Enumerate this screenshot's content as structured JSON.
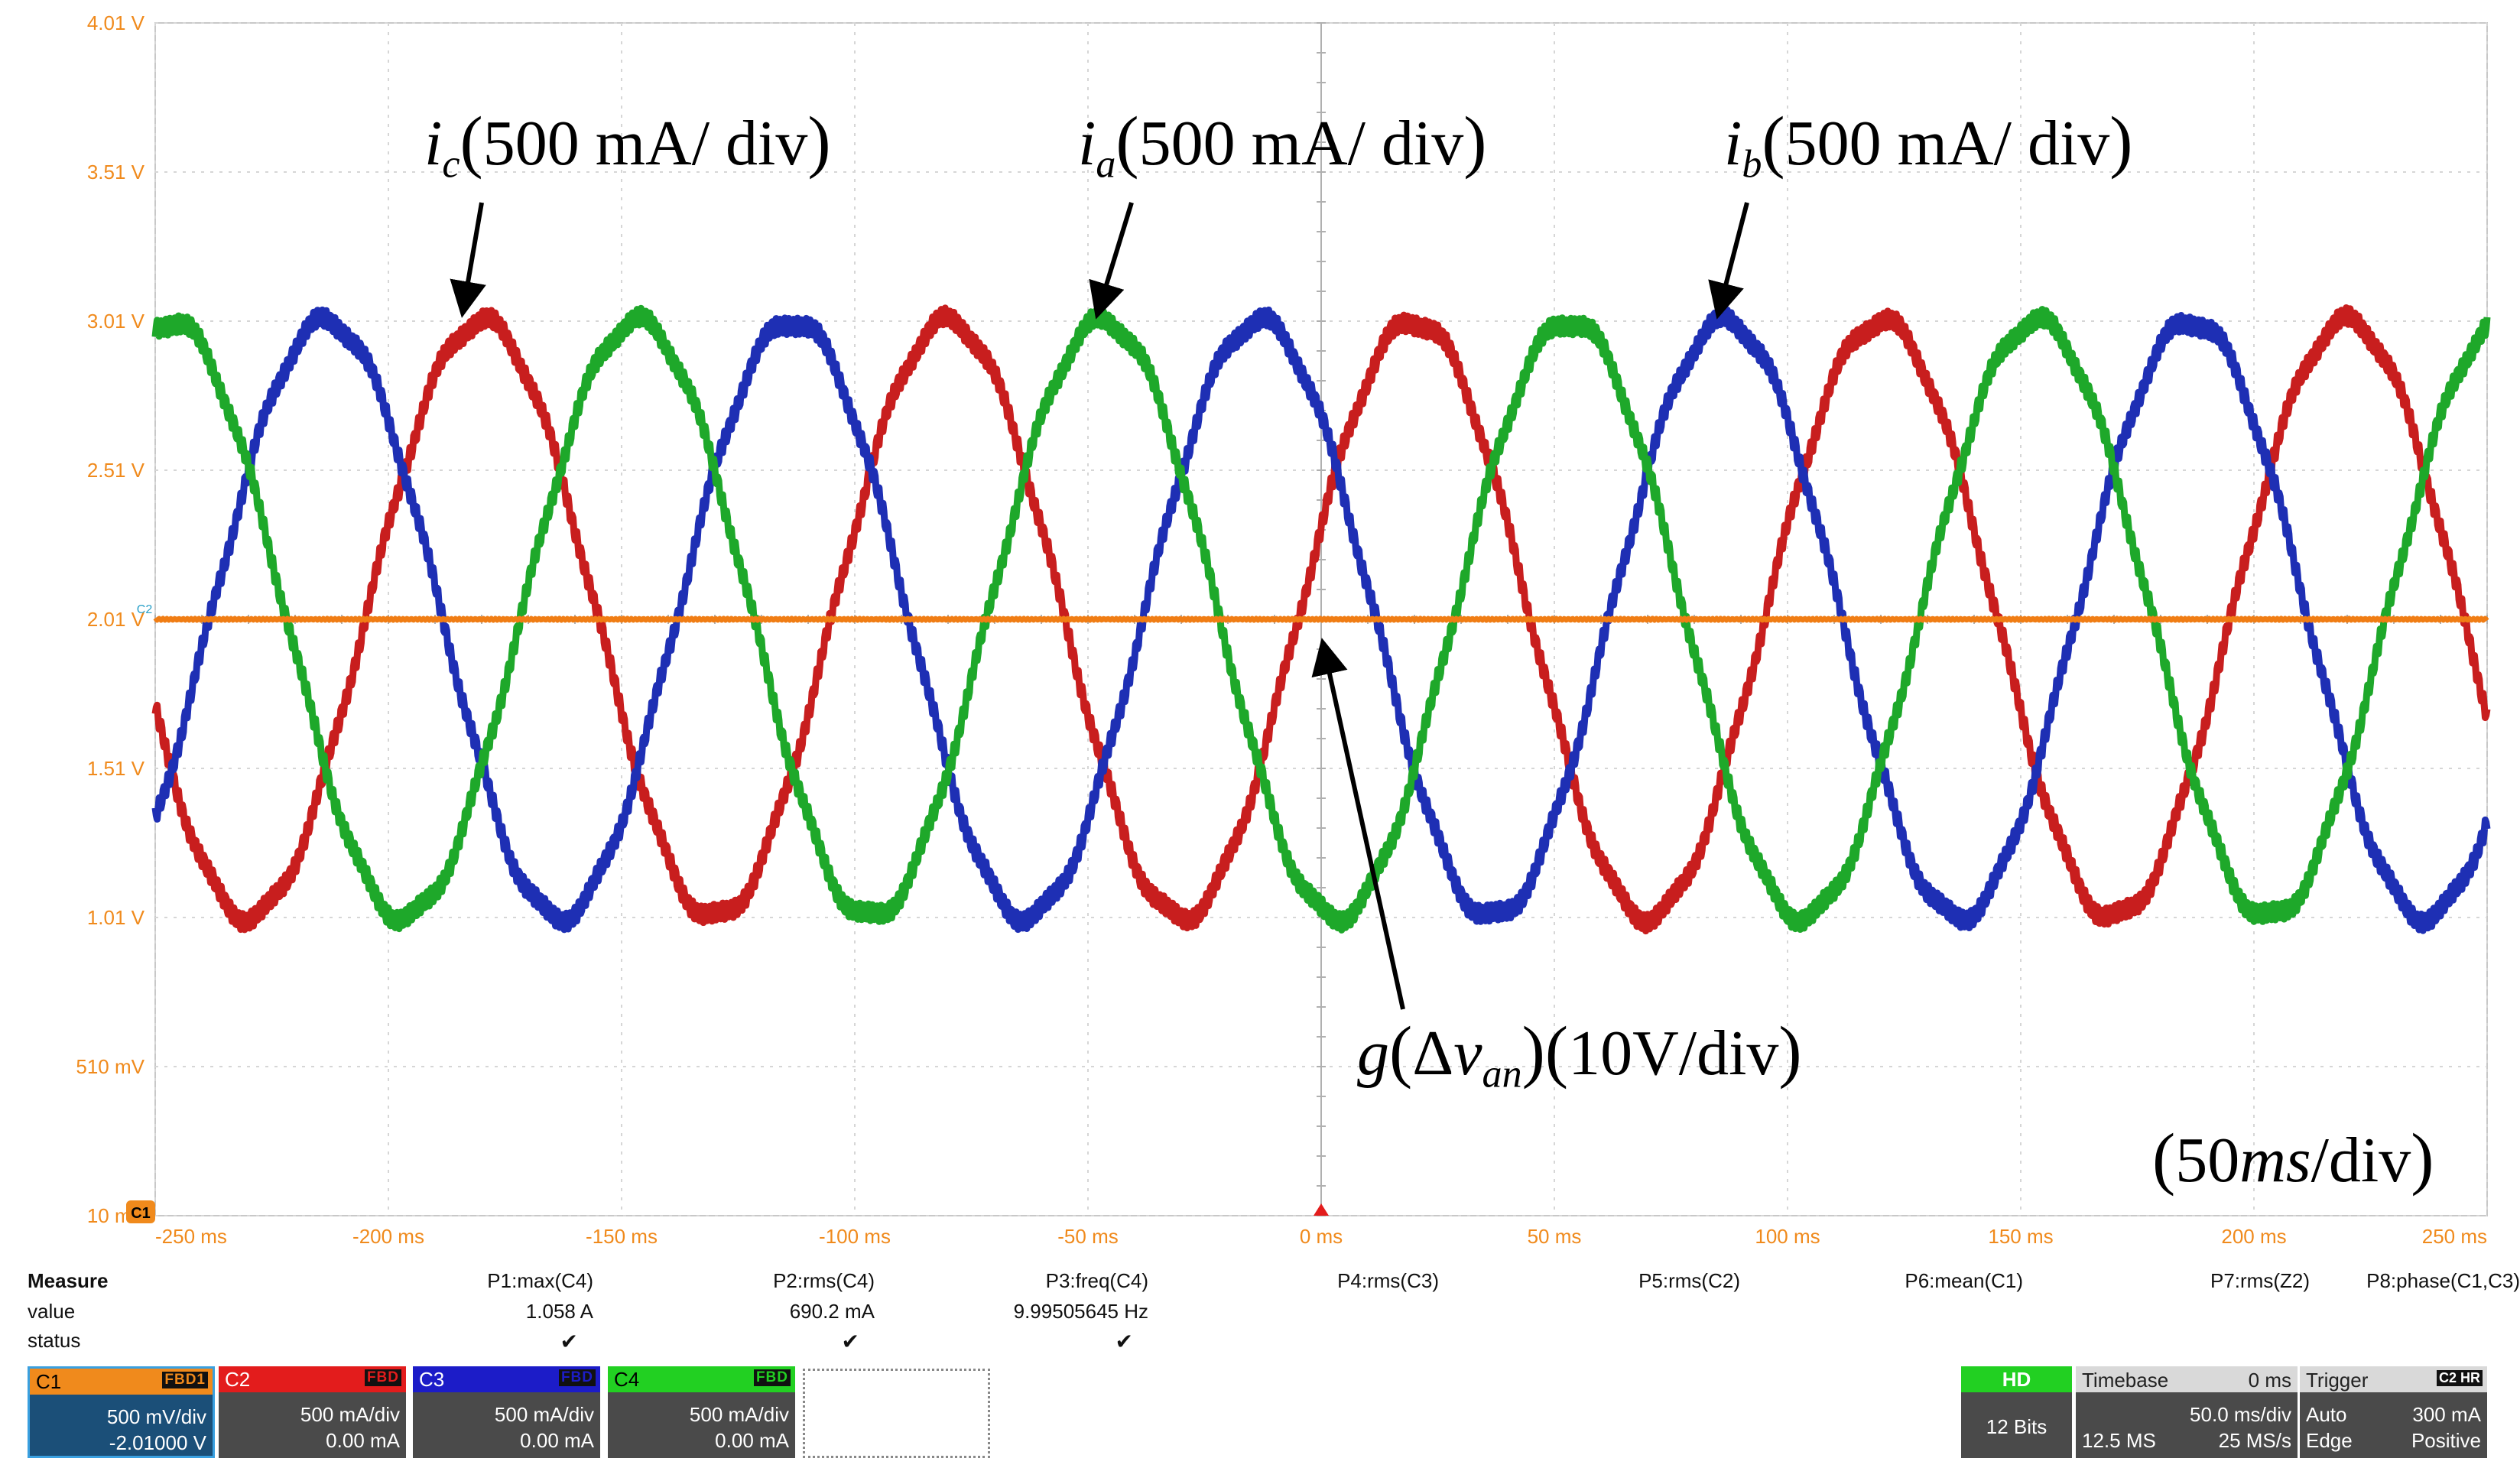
{
  "chart_data": {
    "type": "line",
    "xlabel": "",
    "ylabel": "",
    "xlim": [
      -250,
      250
    ],
    "ylim": [
      0.01,
      4.01
    ],
    "x_ticks": [
      -250,
      -200,
      -150,
      -100,
      -50,
      0,
      50,
      100,
      150,
      200,
      250
    ],
    "x_tick_labels": [
      "-250 ms",
      "-200 ms",
      "-150 ms",
      "-100 ms",
      "-50 ms",
      "0 ms",
      "50 ms",
      "100 ms",
      "150 ms",
      "200 ms",
      "250 ms"
    ],
    "y_ticks": [
      4.01,
      3.51,
      3.01,
      2.51,
      2.01,
      1.51,
      1.01,
      0.51,
      0.01
    ],
    "y_tick_labels": [
      "4.01 V",
      "3.51 V",
      "3.01 V",
      "2.51 V",
      "2.01 V",
      "1.51 V",
      "1.01 V",
      "510 mV",
      "10 mV"
    ],
    "grid": true,
    "series": [
      {
        "name": "",
        "color": "#c81e1e",
        "center_v": 2.01,
        "amplitude_v": 1.0,
        "frequency_hz": 10,
        "peak_time_ms": -180
      },
      {
        "name": "",
        "color": "#1e2fb4",
        "center_v": 2.01,
        "amplitude_v": 1.0,
        "frequency_hz": 10,
        "peak_time_ms": -213.3
      },
      {
        "name": "",
        "color": "#1ea82a",
        "center_v": 2.01,
        "amplitude_v": 1.0,
        "frequency_hz": 10,
        "peak_time_ms": -246.7
      },
      {
        "name": "",
        "color": "#f07d14",
        "center_v": 2.01,
        "amplitude_v": 0.0,
        "frequency_hz": 0,
        "peak_time_ms": 0
      }
    ],
    "annotations": {
      "ic": {
        "sym": "i",
        "sub": "c",
        "text": "500 mA/ div"
      },
      "ia": {
        "sym": "i",
        "sub": "a",
        "text": "500 mA/ div"
      },
      "ib": {
        "sym": "i",
        "sub": "b",
        "text": "500 mA/ div"
      },
      "g": {
        "fn": "g",
        "delta": "Δ",
        "var": "v",
        "sub": "an",
        "text": "10V/div"
      },
      "timescale": {
        "value": "50",
        "unit": "ms",
        "suffix": "/div"
      }
    },
    "markers": {
      "c1_ref": "C1",
      "c2_ref": "C2"
    }
  },
  "measure": {
    "header": "Measure",
    "row_labels": [
      "value",
      "status"
    ],
    "params": [
      {
        "label": "P1:max(C4)",
        "value": "1.058 A",
        "status": "✔"
      },
      {
        "label": "P2:rms(C4)",
        "value": "690.2 mA",
        "status": "✔"
      },
      {
        "label": "P3:freq(C4)",
        "value": "9.99505645 Hz",
        "status": "✔"
      },
      {
        "label": "P4:rms(C3)",
        "value": "",
        "status": ""
      },
      {
        "label": "P5:rms(C2)",
        "value": "",
        "status": ""
      },
      {
        "label": "P6:mean(C1)",
        "value": "",
        "status": ""
      },
      {
        "label": "P7:rms(Z2)",
        "value": "",
        "status": ""
      },
      {
        "label": "P8:phase(C1,C3)",
        "value": "",
        "status": ""
      }
    ]
  },
  "channels": [
    {
      "name": "C1",
      "tags": "FBD1",
      "scale": "500 mV/div",
      "offset": "-2.01000 V",
      "color": "#f08a1c"
    },
    {
      "name": "C2",
      "tags": "FBD",
      "scale": "500 mA/div",
      "offset": "0.00 mA",
      "color": "#e31c1c"
    },
    {
      "name": "C3",
      "tags": "FBD",
      "scale": "500 mA/div",
      "offset": "0.00 mA",
      "color": "#1c1cc8"
    },
    {
      "name": "C4",
      "tags": "FBD",
      "scale": "500 mA/div",
      "offset": "0.00 mA",
      "color": "#22d022"
    }
  ],
  "status": {
    "hd": "HD",
    "bits": "12 Bits",
    "timebase_label": "Timebase",
    "timebase_delay": "0 ms",
    "timebase_div": "50.0 ms/div",
    "samples": "12.5 MS",
    "rate": "25 MS/s",
    "trigger_label": "Trigger",
    "trigger_tags": "C2 HR",
    "trigger_mode": "Auto",
    "trigger_level": "300 mA",
    "trigger_type": "Edge",
    "trigger_slope": "Positive"
  }
}
